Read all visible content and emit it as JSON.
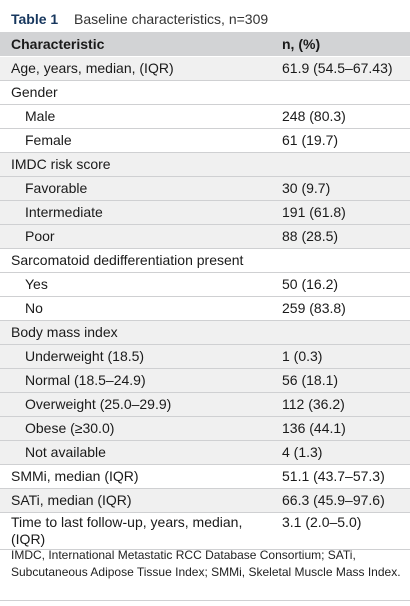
{
  "table": {
    "label": "Table 1",
    "title": "Baseline characteristics, n=309",
    "columns": [
      "Characteristic",
      "n, (%)"
    ],
    "rows": [
      {
        "label": "Age, years, median, (IQR)",
        "value": "61.9 (54.5–67.43)"
      },
      {
        "label": "Gender",
        "value": ""
      },
      {
        "label": "Male",
        "value": "248 (80.3)"
      },
      {
        "label": "Female",
        "value": "61 (19.7)"
      },
      {
        "label": "IMDC risk score",
        "value": ""
      },
      {
        "label": "Favorable",
        "value": "30 (9.7)"
      },
      {
        "label": "Intermediate",
        "value": "191 (61.8)"
      },
      {
        "label": "Poor",
        "value": "88 (28.5)"
      },
      {
        "label": "Sarcomatoid dedifferentiation present",
        "value": ""
      },
      {
        "label": "Yes",
        "value": "50 (16.2)"
      },
      {
        "label": "No",
        "value": "259 (83.8)"
      },
      {
        "label": "Body mass index",
        "value": ""
      },
      {
        "label": "Underweight (18.5)",
        "value": "1 (0.3)"
      },
      {
        "label": "Normal (18.5–24.9)",
        "value": "56 (18.1)"
      },
      {
        "label": "Overweight (25.0–29.9)",
        "value": "112 (36.2)"
      },
      {
        "label": "Obese (≥30.0)",
        "value": "136 (44.1)"
      },
      {
        "label": "Not available",
        "value": "4 (1.3)"
      },
      {
        "label": "SMMi, median (IQR)",
        "value": "51.1 (43.7–57.3)"
      },
      {
        "label": "SATi, median (IQR)",
        "value": "66.3 (45.9–97.6)"
      },
      {
        "label": "Time to last follow-up, years, median, (IQR)",
        "value": "3.1 (2.0–5.0)"
      }
    ],
    "footnote": "IMDC, International Metastatic RCC Database Consortium; SATi, Subcutaneous Adipose Tissue Index; SMMi, Skeletal Muscle Mass Index."
  }
}
